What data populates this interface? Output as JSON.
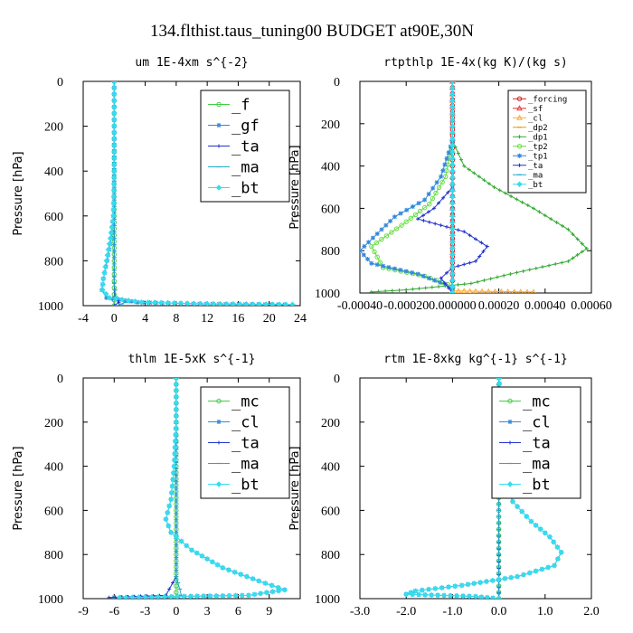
{
  "page": {
    "title": "134.flthist.taus_tuning00  BUDGET at90E,30N"
  },
  "chart_data": [
    {
      "id": "um",
      "type": "line",
      "title": "um   1E-4xm s^{-2}",
      "ylabel": "Pressure [hPa]",
      "xlim": [
        -4,
        24
      ],
      "xticks": [
        -4,
        0,
        4,
        8,
        12,
        16,
        20,
        24
      ],
      "xtick_labels": [
        "-4",
        "0",
        "4",
        "8",
        "12",
        "16",
        "20",
        "24"
      ],
      "ylim": [
        1000,
        0
      ],
      "yticks": [
        0,
        200,
        400,
        600,
        800,
        1000
      ],
      "ytick_labels": [
        "0",
        "200",
        "400",
        "600",
        "800",
        "1000"
      ],
      "legend_position": "top-right",
      "legend_size": "large",
      "series": [
        {
          "name": "_f",
          "color": "#44cc44",
          "marker": "circle",
          "points": [
            [
              0,
              0
            ],
            [
              0,
              200
            ],
            [
              0,
              400
            ],
            [
              0,
              600
            ],
            [
              0,
              800
            ],
            [
              0,
              950
            ],
            [
              0,
              1000
            ]
          ]
        },
        {
          "name": "_gf",
          "color": "#3388dd",
          "marker": "star",
          "points": [
            [
              0,
              0
            ],
            [
              0,
              400
            ],
            [
              -0.1,
              600
            ],
            [
              -0.4,
              700
            ],
            [
              -0.9,
              800
            ],
            [
              -1.4,
              880
            ],
            [
              -1.6,
              930
            ],
            [
              -1.0,
              965
            ],
            [
              3,
              985
            ],
            [
              11,
              992
            ],
            [
              22,
              995
            ]
          ]
        },
        {
          "name": "_ta",
          "color": "#2233cc",
          "marker": "plus",
          "points": [
            [
              0,
              0
            ],
            [
              0,
              500
            ],
            [
              0,
              900
            ],
            [
              0.1,
              960
            ],
            [
              0.6,
              985
            ],
            [
              0,
              1000
            ]
          ]
        },
        {
          "name": "_ma",
          "color": "#22aacc",
          "marker": "dash",
          "points": [
            [
              0,
              0
            ],
            [
              0,
              500
            ],
            [
              0,
              900
            ],
            [
              0.2,
              960
            ],
            [
              1.5,
              985
            ],
            [
              0.3,
              1000
            ]
          ]
        },
        {
          "name": "_bt",
          "color": "#33ddee",
          "marker": "diamond",
          "points": [
            [
              0,
              0
            ],
            [
              0,
              400
            ],
            [
              -0.1,
              600
            ],
            [
              -0.5,
              700
            ],
            [
              -1.0,
              800
            ],
            [
              -1.4,
              880
            ],
            [
              -1.5,
              930
            ],
            [
              -0.6,
              965
            ],
            [
              3.5,
              985
            ],
            [
              12,
              992
            ],
            [
              23,
              995
            ]
          ]
        }
      ]
    },
    {
      "id": "rtpthlp",
      "type": "line",
      "title": "rtpthlp   1E-4x(kg K)/(kg s)",
      "ylabel": "Pressure [hPa]",
      "xlim": [
        -0.0004,
        0.0006
      ],
      "xticks": [
        -0.0004,
        -0.0002,
        0,
        0.0002,
        0.0004,
        0.0006
      ],
      "xtick_labels": [
        "-0.00040",
        "-0.00020",
        "0.000000",
        "0.00020",
        "0.00040",
        "0.00060"
      ],
      "ylim": [
        1000,
        0
      ],
      "yticks": [
        0,
        200,
        400,
        600,
        800,
        1000
      ],
      "ytick_labels": [
        "0",
        "200",
        "400",
        "600",
        "800",
        "1000"
      ],
      "legend_position": "top-right",
      "legend_size": "small",
      "series": [
        {
          "name": "_forcing",
          "color": "#cc2222",
          "marker": "circle",
          "points": [
            [
              0,
              0
            ],
            [
              0,
              200
            ],
            [
              0,
              400
            ],
            [
              0,
              600
            ],
            [
              0,
              800
            ],
            [
              0,
              1000
            ]
          ]
        },
        {
          "name": "_sf",
          "color": "#ee3333",
          "marker": "triangle",
          "points": [
            [
              0,
              0
            ],
            [
              0,
              300
            ],
            [
              0,
              600
            ],
            [
              0,
              900
            ],
            [
              0,
              1000
            ]
          ]
        },
        {
          "name": "_cl",
          "color": "#ffaa33",
          "marker": "triangle",
          "points": [
            [
              0,
              990
            ],
            [
              0.0001,
              992
            ],
            [
              0.00035,
              995
            ]
          ]
        },
        {
          "name": "_dp2",
          "color": "#ee9900",
          "marker": "dash",
          "points": [
            [
              0,
              0
            ],
            [
              0,
              1000
            ]
          ]
        },
        {
          "name": "_dp1",
          "color": "#33aa33",
          "marker": "plus",
          "points": [
            [
              0,
              280
            ],
            [
              5e-05,
              400
            ],
            [
              0.00018,
              500
            ],
            [
              0.00035,
              600
            ],
            [
              0.0005,
              700
            ],
            [
              0.00058,
              790
            ],
            [
              0.0005,
              850
            ],
            [
              0.00025,
              910
            ],
            [
              8e-05,
              955
            ],
            [
              -0.0002,
              985
            ],
            [
              -0.00035,
              995
            ]
          ]
        },
        {
          "name": "_tp2",
          "color": "#66dd44",
          "marker": "circle",
          "points": [
            [
              0,
              280
            ],
            [
              -3e-05,
              450
            ],
            [
              -0.0001,
              580
            ],
            [
              -0.00022,
              680
            ],
            [
              -0.00035,
              780
            ],
            [
              -0.0003,
              880
            ],
            [
              -0.00012,
              920
            ],
            [
              -2e-05,
              960
            ],
            [
              0,
              980
            ]
          ]
        },
        {
          "name": "_tp1",
          "color": "#3388dd",
          "marker": "star",
          "points": [
            [
              0,
              280
            ],
            [
              -5e-05,
              450
            ],
            [
              -0.00012,
              560
            ],
            [
              -0.00025,
              640
            ],
            [
              -0.0004,
              800
            ],
            [
              -0.00035,
              860
            ],
            [
              -0.00015,
              910
            ],
            [
              -3e-05,
              960
            ],
            [
              0,
              980
            ]
          ]
        },
        {
          "name": "_ta",
          "color": "#2233cc",
          "marker": "plus",
          "points": [
            [
              0,
              500
            ],
            [
              -8e-05,
              600
            ],
            [
              -0.00015,
              650
            ],
            [
              5e-05,
              710
            ],
            [
              0.00015,
              780
            ],
            [
              0.0001,
              850
            ],
            [
              0,
              880
            ],
            [
              -5e-05,
              930
            ],
            [
              0,
              1000
            ]
          ]
        },
        {
          "name": "_ma",
          "color": "#22aacc",
          "marker": "dash",
          "points": [
            [
              0,
              0
            ],
            [
              0,
              1000
            ]
          ]
        },
        {
          "name": "_bt",
          "color": "#33ddee",
          "marker": "diamond",
          "points": [
            [
              0,
              0
            ],
            [
              0,
              1000
            ]
          ]
        }
      ]
    },
    {
      "id": "thlm",
      "type": "line",
      "title": "thlm   1E-5xK s^{-1}",
      "ylabel": "Pressure [hPa]",
      "xlim": [
        -9,
        12
      ],
      "xticks": [
        -9,
        -6,
        -3,
        0,
        3,
        6,
        9
      ],
      "xtick_labels": [
        "-9",
        "-6",
        "-3",
        "0",
        "3",
        "6",
        "9"
      ],
      "ylim": [
        1000,
        0
      ],
      "yticks": [
        0,
        200,
        400,
        600,
        800,
        1000
      ],
      "ytick_labels": [
        "0",
        "200",
        "400",
        "600",
        "800",
        "1000"
      ],
      "legend_position": "top-right",
      "legend_size": "large",
      "series": [
        {
          "name": "_mc",
          "color": "#44cc44",
          "marker": "circle",
          "points": [
            [
              0,
              0
            ],
            [
              0,
              200
            ],
            [
              0,
              400
            ],
            [
              0,
              600
            ],
            [
              0,
              800
            ],
            [
              0,
              1000
            ]
          ]
        },
        {
          "name": "_cl",
          "color": "#3388dd",
          "marker": "star",
          "points": [
            [
              0,
              0
            ],
            [
              0,
              200
            ],
            [
              -0.2,
              400
            ],
            [
              -0.5,
              550
            ],
            [
              -1.0,
              640
            ],
            [
              -0.5,
              700
            ],
            [
              1.5,
              780
            ],
            [
              4.5,
              860
            ],
            [
              8,
              920
            ],
            [
              10.5,
              960
            ],
            [
              7,
              985
            ],
            [
              -6,
              995
            ]
          ]
        },
        {
          "name": "_ta",
          "color": "#2233cc",
          "marker": "plus",
          "points": [
            [
              0,
              0
            ],
            [
              0,
              500
            ],
            [
              0,
              900
            ],
            [
              -1,
              985
            ],
            [
              -6.5,
              995
            ]
          ]
        },
        {
          "name": "_ma",
          "color": "#22aacc",
          "marker": "dash",
          "points": [
            [
              0,
              0
            ],
            [
              0,
              500
            ],
            [
              0,
              900
            ],
            [
              0.5,
              985
            ],
            [
              -1,
              995
            ]
          ]
        },
        {
          "name": "_bt",
          "color": "#33ddee",
          "marker": "diamond",
          "points": [
            [
              0,
              0
            ],
            [
              0,
              200
            ],
            [
              -0.2,
              400
            ],
            [
              -0.5,
              550
            ],
            [
              -1.0,
              640
            ],
            [
              -0.5,
              700
            ],
            [
              1.5,
              780
            ],
            [
              4.5,
              860
            ],
            [
              8,
              920
            ],
            [
              10.5,
              960
            ],
            [
              7,
              985
            ],
            [
              -5.5,
              995
            ]
          ]
        }
      ]
    },
    {
      "id": "rtm",
      "type": "line",
      "title": "rtm   1E-8xkg kg^{-1} s^{-1}",
      "ylabel": "Pressure [hPa]",
      "xlim": [
        -3.0,
        2.0
      ],
      "xticks": [
        -3,
        -2,
        -1,
        0,
        1,
        2
      ],
      "xtick_labels": [
        "-3.0",
        "-2.0",
        "-1.0",
        "0.0",
        "1.0",
        "2.0"
      ],
      "ylim": [
        1000,
        0
      ],
      "yticks": [
        0,
        200,
        400,
        600,
        800,
        1000
      ],
      "ytick_labels": [
        "0",
        "200",
        "400",
        "600",
        "800",
        "1000"
      ],
      "legend_position": "top-right",
      "legend_size": "large",
      "series": [
        {
          "name": "_mc",
          "color": "#44cc44",
          "marker": "circle",
          "points": [
            [
              0,
              0
            ],
            [
              0,
              200
            ],
            [
              0,
              400
            ],
            [
              0,
              600
            ],
            [
              0,
              800
            ],
            [
              0,
              1000
            ]
          ]
        },
        {
          "name": "_cl",
          "color": "#3388dd",
          "marker": "star",
          "points": [
            [
              0,
              0
            ],
            [
              0.05,
              100
            ],
            [
              0.1,
              200
            ],
            [
              0.05,
              300
            ],
            [
              0.1,
              450
            ],
            [
              0.3,
              560
            ],
            [
              0.7,
              650
            ],
            [
              1.1,
              720
            ],
            [
              1.35,
              790
            ],
            [
              1.2,
              850
            ],
            [
              0.4,
              900
            ],
            [
              -0.8,
              940
            ],
            [
              -1.8,
              965
            ],
            [
              -2.0,
              980
            ],
            [
              -0.5,
              990
            ],
            [
              0,
              1000
            ]
          ]
        },
        {
          "name": "_ta",
          "color": "#2233cc",
          "marker": "plus",
          "points": [
            [
              0,
              0
            ],
            [
              0,
              600
            ],
            [
              0,
              950
            ],
            [
              0,
              1000
            ]
          ]
        },
        {
          "name": "_ma",
          "color": "#22aacc",
          "marker": "dash",
          "points": [
            [
              0,
              0
            ],
            [
              0,
              1000
            ]
          ]
        },
        {
          "name": "_bt",
          "color": "#33ddee",
          "marker": "diamond",
          "points": [
            [
              0,
              0
            ],
            [
              0.05,
              100
            ],
            [
              0.1,
              200
            ],
            [
              0.05,
              300
            ],
            [
              0.1,
              450
            ],
            [
              0.3,
              560
            ],
            [
              0.7,
              650
            ],
            [
              1.1,
              720
            ],
            [
              1.35,
              790
            ],
            [
              1.2,
              850
            ],
            [
              0.4,
              900
            ],
            [
              -0.8,
              940
            ],
            [
              -1.8,
              965
            ],
            [
              -2.0,
              980
            ],
            [
              -0.5,
              990
            ],
            [
              0,
              1000
            ]
          ]
        }
      ]
    }
  ]
}
